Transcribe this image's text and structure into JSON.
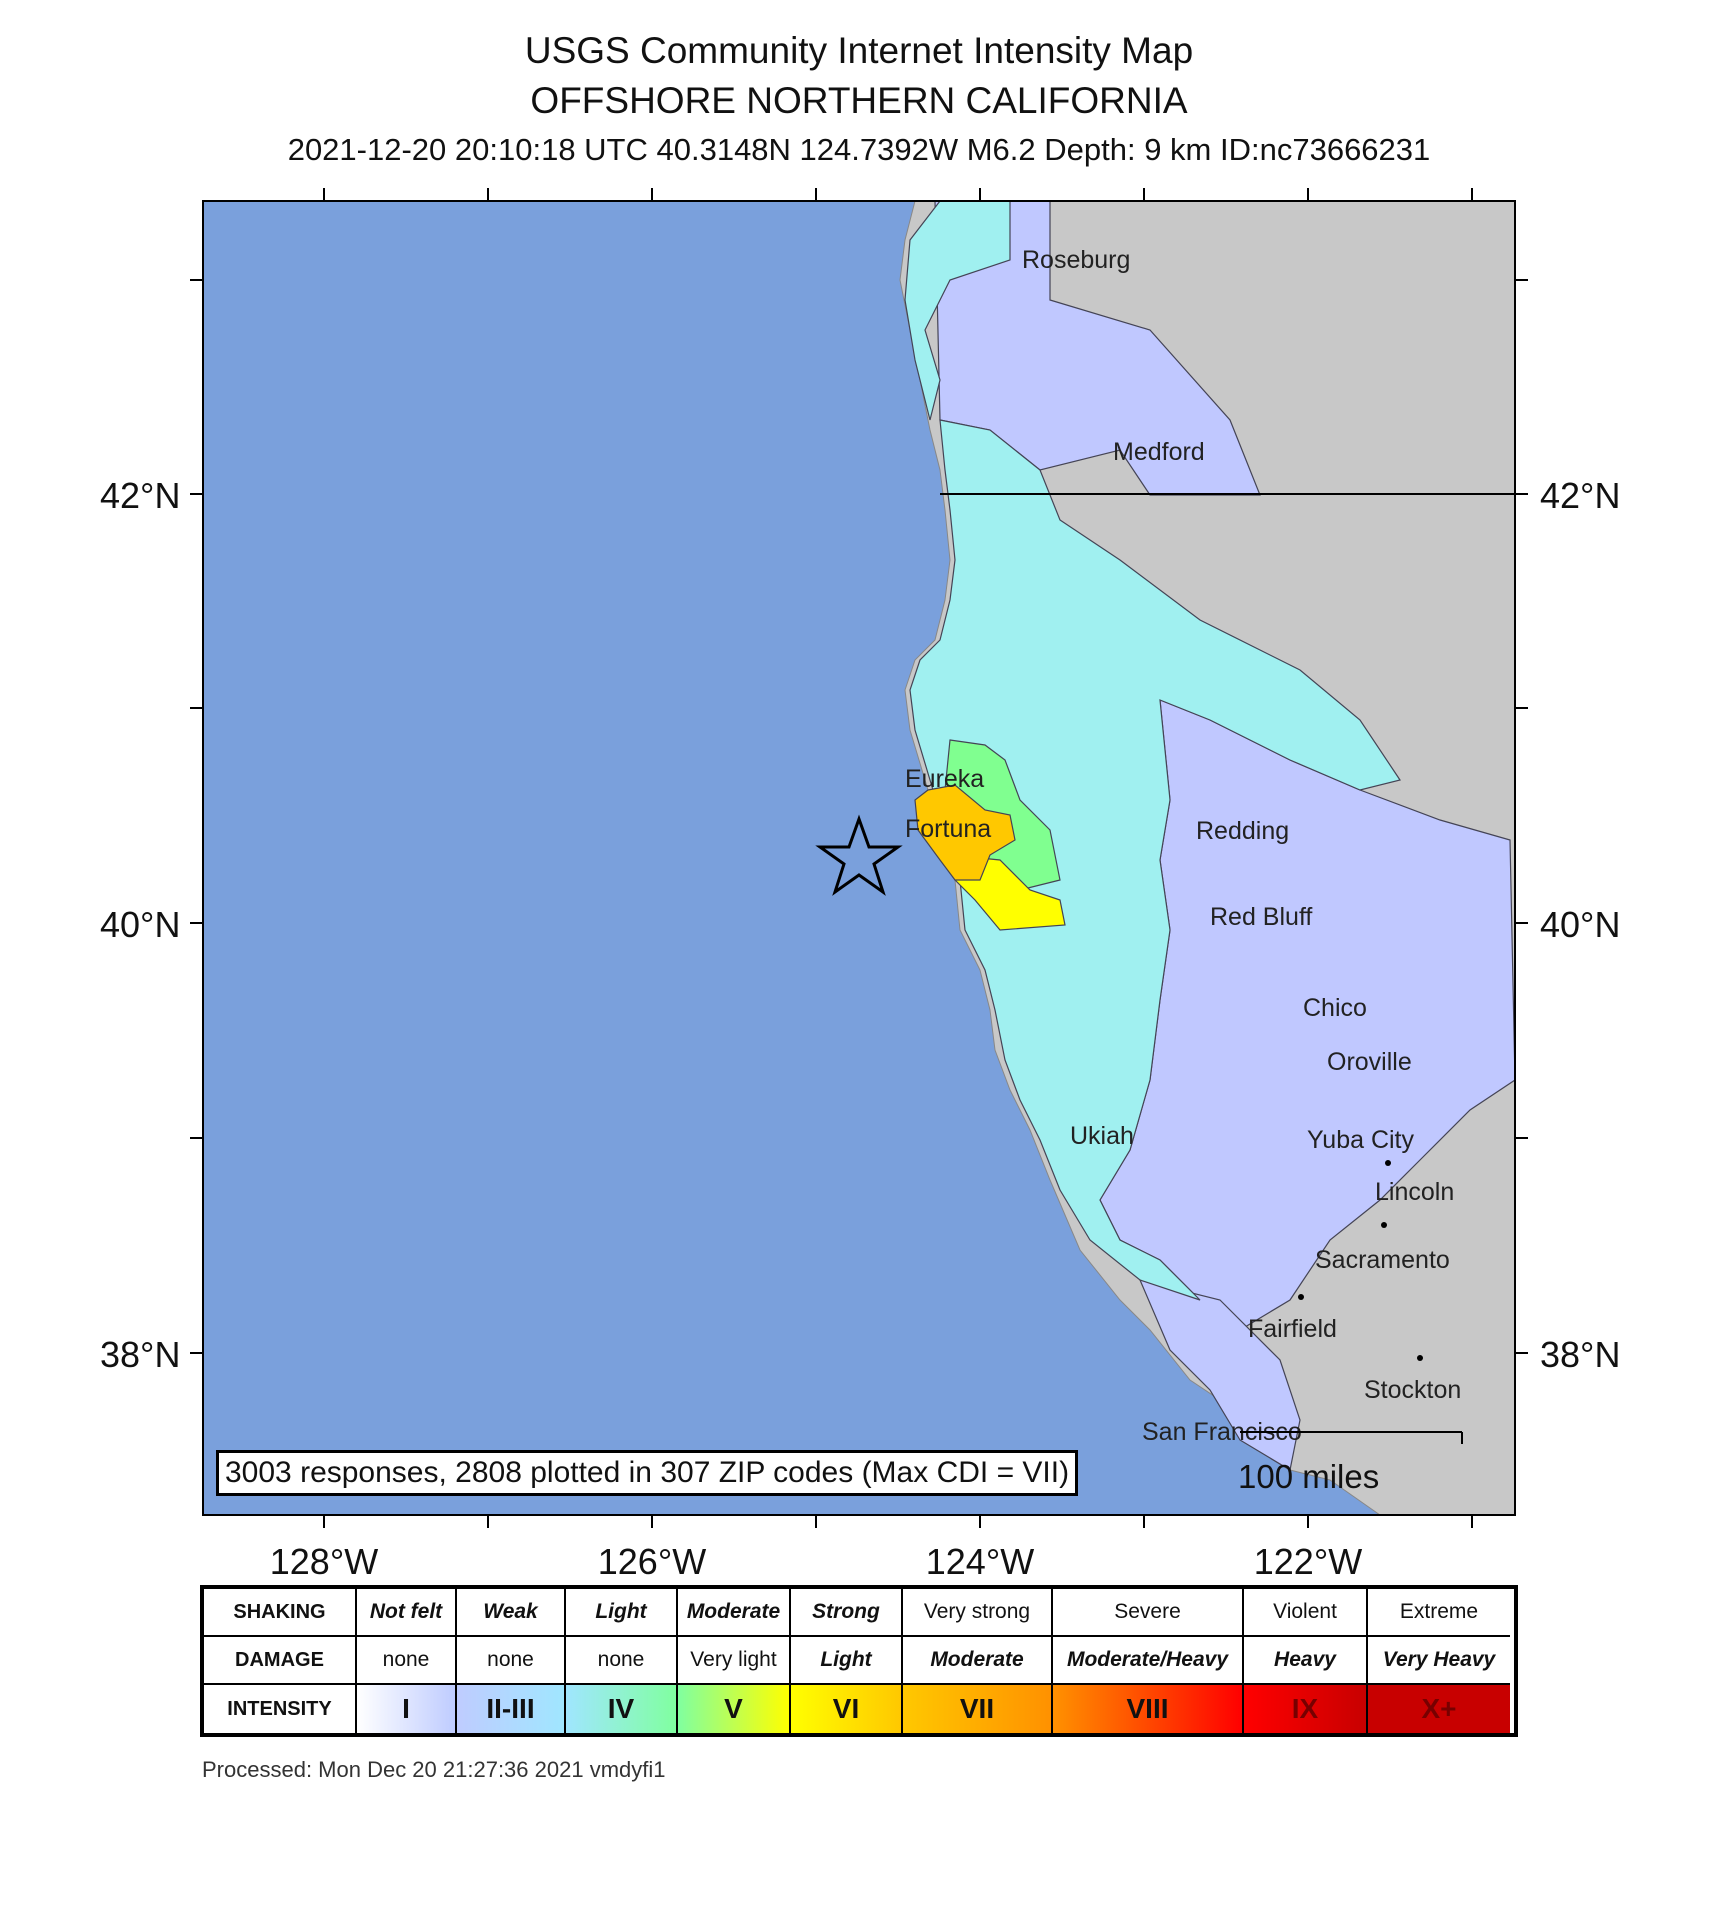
{
  "header": {
    "title": "USGS Community Internet Intensity Map",
    "region": "OFFSHORE NORTHERN CALIFORNIA",
    "event_info": "2021-12-20 20:10:18 UTC 40.3148N 124.7392W M6.2 Depth: 9 km ID:nc73666231"
  },
  "map": {
    "lat_labels": [
      "42°N",
      "40°N",
      "38°N"
    ],
    "lon_labels": [
      "128°W",
      "126°W",
      "124°W",
      "122°W"
    ],
    "cities": [
      "Roseburg",
      "Medford",
      "Eureka",
      "Fortuna",
      "Redding",
      "Red Bluff",
      "Chico",
      "Oroville",
      "Ukiah",
      "Yuba City",
      "Lincoln",
      "Sacramento",
      "Fairfield",
      "Stockton",
      "San Francisco"
    ],
    "responses": "3003 responses, 2808 plotted in 307 ZIP codes (Max CDI = VII)",
    "scale": "100 miles",
    "epicenter": {
      "lat": 40.3148,
      "lon": -124.7392
    },
    "colors": {
      "ocean": "#7aa0dc",
      "land": "#c8c8c8",
      "cdi_ii_iii": "#c0c8ff",
      "cdi_iv": "#a0f0f0",
      "cdi_v": "#80ff90",
      "cdi_vi": "#ffff00",
      "cdi_vii": "#ffc800"
    }
  },
  "legend": {
    "row_headers": [
      "SHAKING",
      "DAMAGE",
      "INTENSITY"
    ],
    "shaking": [
      "Not felt",
      "Weak",
      "Light",
      "Moderate",
      "Strong",
      "Very strong",
      "Severe",
      "Violent",
      "Extreme"
    ],
    "damage": [
      "none",
      "none",
      "none",
      "Very light",
      "Light",
      "Moderate",
      "Moderate/Heavy",
      "Heavy",
      "Very Heavy"
    ],
    "intensity": [
      "I",
      "II-III",
      "IV",
      "V",
      "VI",
      "VII",
      "VIII",
      "IX",
      "X+"
    ],
    "intensity_colors": [
      "#ffffff",
      "#bfccff",
      "#a0e6ff",
      "#80ffa0",
      "#ffff00",
      "#ffc800",
      "#ff9100",
      "#ff0000",
      "#c80000"
    ]
  },
  "footer": {
    "processed": "Processed: Mon Dec 20 21:27:36 2021 vmdyfi1"
  }
}
